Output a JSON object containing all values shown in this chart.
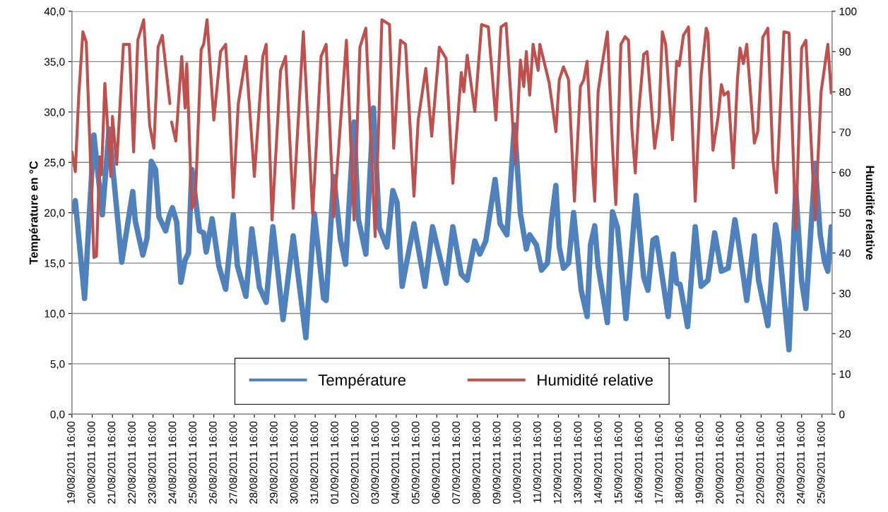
{
  "chart_data": {
    "type": "line",
    "ylabel": "Température en °C",
    "y2label": "Humidité relative",
    "xlim": [
      "2011-08-19T16:00",
      "2011-09-26T04:00"
    ],
    "xticks": [
      {
        "value": "2011-08-19T16:00",
        "label": "19/08/2011 16:00"
      },
      {
        "value": "2011-08-20T16:00",
        "label": "20/08/2011 16:00"
      },
      {
        "value": "2011-08-21T16:00",
        "label": "21/08/2011 16:00"
      },
      {
        "value": "2011-08-22T16:00",
        "label": "22/08/2011 16:00"
      },
      {
        "value": "2011-08-23T16:00",
        "label": "23/08/2011 16:00"
      },
      {
        "value": "2011-08-24T16:00",
        "label": "24/08/2011 16:00"
      },
      {
        "value": "2011-08-25T16:00",
        "label": "25/08/2011 16:00"
      },
      {
        "value": "2011-08-26T16:00",
        "label": "26/08/2011 16:00"
      },
      {
        "value": "2011-08-27T16:00",
        "label": "27/08/2011 16:00"
      },
      {
        "value": "2011-08-28T16:00",
        "label": "28/08/2011 16:00"
      },
      {
        "value": "2011-08-29T16:00",
        "label": "29/08/2011 16:00"
      },
      {
        "value": "2011-08-30T16:00",
        "label": "30/08/2011 16:00"
      },
      {
        "value": "2011-08-31T16:00",
        "label": "31/08/2011 16:00"
      },
      {
        "value": "2011-09-01T16:00",
        "label": "01/09/2011 16:00"
      },
      {
        "value": "2011-09-02T16:00",
        "label": "02/09/2011 16:00"
      },
      {
        "value": "2011-09-03T16:00",
        "label": "03/09/2011 16:00"
      },
      {
        "value": "2011-09-04T16:00",
        "label": "04/09/2011 16:00"
      },
      {
        "value": "2011-09-05T16:00",
        "label": "05/09/2011 16:00"
      },
      {
        "value": "2011-09-06T16:00",
        "label": "06/09/2011 16:00"
      },
      {
        "value": "2011-09-07T16:00",
        "label": "07/09/2011 16:00"
      },
      {
        "value": "2011-09-08T16:00",
        "label": "08/09/2011 16:00"
      },
      {
        "value": "2011-09-09T16:00",
        "label": "09/09/2011 16:00"
      },
      {
        "value": "2011-09-10T16:00",
        "label": "10/09/2011 16:00"
      },
      {
        "value": "2011-09-11T16:00",
        "label": "11/09/2011 16:00"
      },
      {
        "value": "2011-09-12T16:00",
        "label": "12/09/2011 16:00"
      },
      {
        "value": "2011-09-13T16:00",
        "label": "13/09/2011 16:00"
      },
      {
        "value": "2011-09-14T16:00",
        "label": "14/09/2011 16:00"
      },
      {
        "value": "2011-09-15T16:00",
        "label": "15/09/2011 16:00"
      },
      {
        "value": "2011-09-16T16:00",
        "label": "16/09/2011 16:00"
      },
      {
        "value": "2011-09-17T16:00",
        "label": "17/09/2011 16:00"
      },
      {
        "value": "2011-09-18T16:00",
        "label": "18/09/2011 16:00"
      },
      {
        "value": "2011-09-19T16:00",
        "label": "19/09/2011 16:00"
      },
      {
        "value": "2011-09-20T16:00",
        "label": "20/09/2011 16:00"
      },
      {
        "value": "2011-09-21T16:00",
        "label": "21/09/2011 16:00"
      },
      {
        "value": "2011-09-22T16:00",
        "label": "22/09/2011 16:00"
      },
      {
        "value": "2011-09-23T16:00",
        "label": "23/09/2011 16:00"
      },
      {
        "value": "2011-09-24T16:00",
        "label": "24/09/2011 16:00"
      },
      {
        "value": "2011-09-25T16:00",
        "label": "25/09/2011 16:00"
      }
    ],
    "ylim": [
      0,
      40
    ],
    "yticks": [
      {
        "value": 0,
        "label": "0,0"
      },
      {
        "value": 5,
        "label": "5,0"
      },
      {
        "value": 10,
        "label": "10,0"
      },
      {
        "value": 15,
        "label": "15,0"
      },
      {
        "value": 20,
        "label": "20,0"
      },
      {
        "value": 25,
        "label": "25,0"
      },
      {
        "value": 30,
        "label": "30,0"
      },
      {
        "value": 35,
        "label": "35,0"
      },
      {
        "value": 40,
        "label": "40,0"
      }
    ],
    "y2lim": [
      0,
      100
    ],
    "y2ticks": [
      0,
      10,
      20,
      30,
      40,
      50,
      60,
      70,
      80,
      90,
      100
    ],
    "grid": "y",
    "legend": "bottom",
    "marker": "none",
    "line_style": "solid",
    "series": [
      {
        "name": "Température",
        "color": "#4f81bd",
        "x": [
          "2011-08-19T16:00",
          "2011-08-19T20:00",
          "2011-08-20T07:00",
          "2011-08-20T18:00",
          "2011-08-21T04:00",
          "2011-08-21T12:00",
          "2011-08-22T03:00",
          "2011-08-22T16:00",
          "2011-08-22T19:00",
          "2011-08-23T04:00",
          "2011-08-23T09:00",
          "2011-08-23T14:00",
          "2011-08-23T19:00",
          "2011-08-23T23:00",
          "2011-08-24T07:00",
          "2011-08-24T11:00",
          "2011-08-24T15:00",
          "2011-08-24T20:00",
          "2011-08-25T01:00",
          "2011-08-25T06:00",
          "2011-08-25T10:00",
          "2011-08-25T14:00",
          "2011-08-25T23:00",
          "2011-08-26T04:00",
          "2011-08-26T07:00",
          "2011-08-26T14:00",
          "2011-08-26T22:00",
          "2011-08-27T06:00",
          "2011-08-27T15:00",
          "2011-08-27T20:00",
          "2011-08-28T06:00",
          "2011-08-28T13:00",
          "2011-08-28T22:00",
          "2011-08-29T06:00",
          "2011-08-29T14:00",
          "2011-08-30T02:00",
          "2011-08-30T14:00",
          "2011-08-31T05:00",
          "2011-08-31T15:00",
          "2011-09-01T02:00",
          "2011-09-01T05:00",
          "2011-09-01T14:00",
          "2011-09-01T22:00",
          "2011-09-02T04:00",
          "2011-09-02T14:00",
          "2011-09-02T19:00",
          "2011-09-03T04:00",
          "2011-09-03T13:00",
          "2011-09-03T20:00",
          "2011-09-04T05:00",
          "2011-09-04T12:00",
          "2011-09-04T17:00",
          "2011-09-04T23:00",
          "2011-09-05T13:00",
          "2011-09-06T02:00",
          "2011-09-06T11:00",
          "2011-09-07T03:00",
          "2011-09-07T11:00",
          "2011-09-07T21:00",
          "2011-09-08T04:00",
          "2011-09-08T13:00",
          "2011-09-08T19:00",
          "2011-09-09T02:00",
          "2011-09-09T13:00",
          "2011-09-09T19:00",
          "2011-09-10T03:00",
          "2011-09-10T12:00",
          "2011-09-10T19:00",
          "2011-09-11T02:00",
          "2011-09-11T06:00",
          "2011-09-11T14:00",
          "2011-09-11T20:00",
          "2011-09-12T03:00",
          "2011-09-12T08:00",
          "2011-09-12T13:00",
          "2011-09-12T17:00",
          "2011-09-12T22:00",
          "2011-09-13T04:00",
          "2011-09-13T10:00",
          "2011-09-13T19:00",
          "2011-09-14T02:00",
          "2011-09-14T06:00",
          "2011-09-14T11:00",
          "2011-09-14T15:00",
          "2011-09-15T02:00",
          "2011-09-15T08:00",
          "2011-09-15T14:00",
          "2011-09-16T00:00",
          "2011-09-16T12:00",
          "2011-09-16T21:00",
          "2011-09-17T02:00",
          "2011-09-17T08:00",
          "2011-09-17T12:00",
          "2011-09-18T02:00",
          "2011-09-18T08:00",
          "2011-09-18T12:00",
          "2011-09-18T16:00",
          "2011-09-19T01:00",
          "2011-09-19T10:00",
          "2011-09-19T17:00",
          "2011-09-20T01:00",
          "2011-09-20T09:00",
          "2011-09-20T17:00",
          "2011-09-21T01:00",
          "2011-09-21T09:00",
          "2011-09-21T14:00",
          "2011-09-21T23:00",
          "2011-09-22T08:00",
          "2011-09-22T13:00",
          "2011-09-23T00:00",
          "2011-09-23T09:00",
          "2011-09-23T13:00",
          "2011-09-24T01:00",
          "2011-09-24T09:00",
          "2011-09-24T16:00",
          "2011-09-24T21:00",
          "2011-09-25T08:00",
          "2011-09-25T14:00",
          "2011-09-25T19:00",
          "2011-09-25T23:00",
          "2011-09-26T03:00"
        ],
        "values": [
          20.1,
          21.2,
          11.5,
          27.7,
          19.8,
          28.3,
          15.1,
          22.1,
          19.2,
          15.8,
          17.5,
          25.1,
          24.3,
          19.6,
          18.2,
          19.6,
          20.5,
          19.1,
          13.1,
          15.3,
          16.0,
          24.3,
          18.2,
          18.0,
          16.1,
          19.4,
          14.7,
          12.4,
          19.8,
          14.7,
          11.7,
          18.4,
          12.6,
          11.1,
          18.6,
          9.4,
          17.7,
          7.6,
          19.9,
          11.5,
          11.3,
          23.6,
          17.3,
          14.9,
          29.0,
          19.4,
          15.9,
          30.4,
          18.5,
          16.6,
          22.2,
          21.0,
          12.7,
          18.9,
          12.7,
          18.6,
          13.0,
          18.6,
          13.9,
          13.3,
          17.2,
          15.9,
          17.2,
          23.3,
          18.9,
          17.8,
          28.7,
          19.9,
          16.4,
          17.8,
          16.8,
          14.3,
          15.0,
          19.4,
          22.7,
          16.6,
          14.5,
          15.0,
          20.0,
          12.3,
          9.7,
          16.8,
          18.7,
          14.7,
          9.1,
          20.1,
          18.5,
          9.5,
          21.7,
          13.6,
          12.3,
          17.3,
          17.5,
          9.7,
          15.9,
          13.0,
          12.9,
          8.7,
          18.6,
          12.7,
          13.3,
          18.0,
          14.2,
          14.5,
          19.3,
          16.6,
          11.3,
          17.7,
          13.3,
          8.8,
          18.8,
          17.1,
          6.4,
          22.4,
          13.2,
          10.5,
          24.9,
          17.8,
          15.2,
          14.2,
          18.6
        ]
      },
      {
        "name": "Humidité relative",
        "color": "#c0504d",
        "axis": "y2",
        "x": [
          "2011-08-19T16:00",
          "2011-08-19T20:00",
          "2011-08-20T00:00",
          "2011-08-20T05:00",
          "2011-08-20T09:00",
          "2011-08-20T18:00",
          "2011-08-20T21:00",
          "2011-08-21T01:00",
          "2011-08-21T03:00",
          "2011-08-21T07:00",
          "2011-08-21T14:00",
          "2011-08-21T16:00",
          "2011-08-21T21:00",
          "2011-08-22T05:00",
          "2011-08-22T12:00",
          "2011-08-22T17:00",
          "2011-08-22T22:00",
          "2011-08-23T05:00",
          "2011-08-23T12:00",
          "2011-08-23T17:00",
          "2011-08-23T22:00",
          "2011-08-24T03:00",
          "2011-08-24T12:00",
          "2011-08-24T13:00",
          "2011-08-24T14:00",
          "2011-08-24T19:00",
          "2011-08-25T02:00",
          "2011-08-25T06:00",
          "2011-08-25T08:00",
          "2011-08-25T14:00",
          "2011-08-25T18:00",
          "2011-08-26T01:00",
          "2011-08-26T04:00",
          "2011-08-26T08:00",
          "2011-08-26T16:00",
          "2011-08-27T00:00",
          "2011-08-27T06:00",
          "2011-08-27T10:00",
          "2011-08-27T15:00",
          "2011-08-27T21:00",
          "2011-08-28T06:00",
          "2011-08-28T10:00",
          "2011-08-28T16:00",
          "2011-08-29T02:00",
          "2011-08-29T06:00",
          "2011-08-29T13:00",
          "2011-08-29T23:00",
          "2011-08-30T05:00",
          "2011-08-30T14:00",
          "2011-08-31T02:00",
          "2011-08-31T13:00",
          "2011-08-31T23:00",
          "2011-09-01T05:00",
          "2011-09-01T14:00",
          "2011-09-01T20:00",
          "2011-09-02T05:00",
          "2011-09-02T14:00",
          "2011-09-02T21:00",
          "2011-09-03T04:00",
          "2011-09-03T15:00",
          "2011-09-03T23:00",
          "2011-09-04T08:00",
          "2011-09-04T13:00",
          "2011-09-04T21:00",
          "2011-09-05T03:00",
          "2011-09-05T13:00",
          "2011-09-05T18:00",
          "2011-09-06T03:00",
          "2011-09-06T10:00",
          "2011-09-06T19:00",
          "2011-09-07T03:00",
          "2011-09-07T11:00",
          "2011-09-07T21:00",
          "2011-09-08T00:00",
          "2011-09-08T04:00",
          "2011-09-08T13:00",
          "2011-09-08T21:00",
          "2011-09-09T05:00",
          "2011-09-09T14:00",
          "2011-09-09T20:00",
          "2011-09-10T02:00",
          "2011-09-10T13:00",
          "2011-09-10T19:00",
          "2011-09-10T23:00",
          "2011-09-11T02:00",
          "2011-09-11T06:00",
          "2011-09-11T10:00",
          "2011-09-11T16:00",
          "2011-09-11T18:00",
          "2011-09-12T05:00",
          "2011-09-12T08:00",
          "2011-09-12T13:00",
          "2011-09-12T17:00",
          "2011-09-12T22:00",
          "2011-09-13T04:00",
          "2011-09-13T11:00",
          "2011-09-13T18:00",
          "2011-09-13T22:00",
          "2011-09-14T02:00",
          "2011-09-14T09:00",
          "2011-09-14T11:00",
          "2011-09-14T15:00",
          "2011-09-14T19:00",
          "2011-09-15T02:00",
          "2011-09-15T08:00",
          "2011-09-15T12:00",
          "2011-09-15T18:00",
          "2011-09-15T23:00",
          "2011-09-16T03:00",
          "2011-09-16T07:00",
          "2011-09-16T11:00",
          "2011-09-16T15:00",
          "2011-09-16T21:00",
          "2011-09-17T01:00",
          "2011-09-17T10:00",
          "2011-09-17T15:00",
          "2011-09-17T19:00",
          "2011-09-17T23:00",
          "2011-09-18T07:00",
          "2011-09-18T12:00",
          "2011-09-18T15:00",
          "2011-09-18T20:00",
          "2011-09-19T02:00",
          "2011-09-19T10:00",
          "2011-09-19T17:00",
          "2011-09-19T23:00",
          "2011-09-20T01:00",
          "2011-09-20T07:00",
          "2011-09-20T13:00",
          "2011-09-20T17:00",
          "2011-09-20T20:00",
          "2011-09-21T01:00",
          "2011-09-21T07:00",
          "2011-09-21T12:00",
          "2011-09-21T15:00",
          "2011-09-21T19:00",
          "2011-09-21T23:00",
          "2011-09-22T08:00",
          "2011-09-22T12:00",
          "2011-09-22T18:00",
          "2011-09-23T00:00",
          "2011-09-23T06:00",
          "2011-09-23T10:00",
          "2011-09-23T19:00",
          "2011-09-24T01:00",
          "2011-09-24T09:00",
          "2011-09-24T16:00",
          "2011-09-24T21:00",
          "2011-09-25T08:00",
          "2011-09-25T15:00",
          "2011-09-25T23:00",
          "2011-09-26T03:00"
        ],
        "values": [
          65.1,
          60.2,
          78.8,
          94.9,
          92.3,
          38.9,
          39.2,
          63.9,
          59.4,
          82.1,
          59.0,
          73.9,
          62.0,
          91.8,
          91.8,
          65.1,
          92.8,
          97.9,
          71.8,
          66.0,
          91.1,
          94.0,
          77.1,
          null,
          72.5,
          67.8,
          88.8,
          76.0,
          87.0,
          51.1,
          52.5,
          90.5,
          91.8,
          97.9,
          73.0,
          90.0,
          91.8,
          77.9,
          53.8,
          77.1,
          88.8,
          77.1,
          59.0,
          88.8,
          91.8,
          48.2,
          85.3,
          88.8,
          51.1,
          94.9,
          49.7,
          88.8,
          91.8,
          49.0,
          66.5,
          92.8,
          48.2,
          91.1,
          95.8,
          44.1,
          97.9,
          96.7,
          66.0,
          92.8,
          91.8,
          54.1,
          73.0,
          85.8,
          69.0,
          91.1,
          88.3,
          57.3,
          84.8,
          80.0,
          89.1,
          75.1,
          96.7,
          96.1,
          73.0,
          96.1,
          97.0,
          62.2,
          87.9,
          81.3,
          90.0,
          79.2,
          91.8,
          85.3,
          91.8,
          82.3,
          77.9,
          70.1,
          83.0,
          86.2,
          83.0,
          52.9,
          81.3,
          83.0,
          87.6,
          59.0,
          52.9,
          80.0,
          85.8,
          94.9,
          66.5,
          52.0,
          91.8,
          93.7,
          92.8,
          70.8,
          59.9,
          74.8,
          89.3,
          90.0,
          66.0,
          73.6,
          94.9,
          91.8,
          68.1,
          87.6,
          86.5,
          94.0,
          96.1,
          52.9,
          84.1,
          95.8,
          94.6,
          65.5,
          73.6,
          81.8,
          79.2,
          80.0,
          61.1,
          83.2,
          90.9,
          87.0,
          91.8,
          67.3,
          70.1,
          93.5,
          95.8,
          63.0,
          55.0,
          94.9,
          94.6,
          45.9,
          90.9,
          92.8,
          48.2,
          80.0,
          91.8,
          79.7
        ]
      }
    ]
  }
}
